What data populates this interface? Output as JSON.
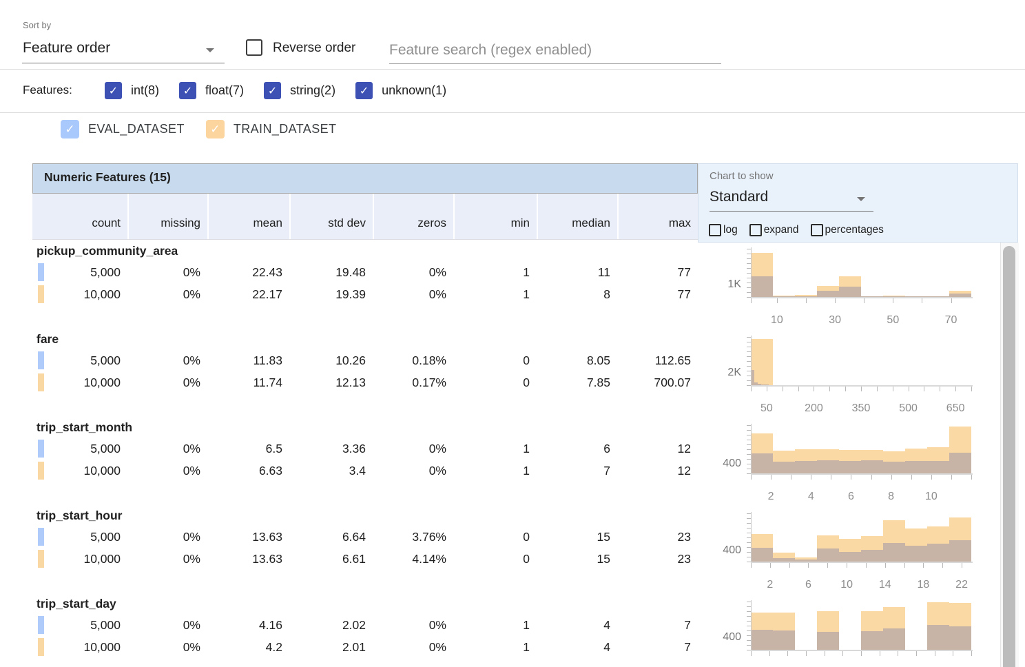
{
  "toolbar": {
    "sort_by_label": "Sort by",
    "sort_by_value": "Feature order",
    "reverse_order_label": "Reverse order",
    "search_placeholder": "Feature search (regex enabled)"
  },
  "features_filter": {
    "label": "Features:",
    "types": [
      {
        "label": "int(8)",
        "checked": true
      },
      {
        "label": "float(7)",
        "checked": true
      },
      {
        "label": "string(2)",
        "checked": true
      },
      {
        "label": "unknown(1)",
        "checked": true
      }
    ]
  },
  "datasets": [
    {
      "name": "EVAL_DATASET",
      "color": "#a9c8fb",
      "checked": true
    },
    {
      "name": "TRAIN_DATASET",
      "color": "#fbd49e",
      "checked": true
    }
  ],
  "chart_controls": {
    "label": "Chart to show",
    "value": "Standard",
    "options": [
      {
        "label": "log",
        "checked": false
      },
      {
        "label": "expand",
        "checked": false
      },
      {
        "label": "percentages",
        "checked": false
      }
    ]
  },
  "table": {
    "title": "Numeric Features (15)",
    "columns": [
      "count",
      "missing",
      "mean",
      "std dev",
      "zeros",
      "min",
      "median",
      "max"
    ],
    "features": [
      {
        "name": "pickup_community_area",
        "rows": [
          {
            "dataset": "EVAL_DATASET",
            "values": [
              "5,000",
              "0%",
              "22.43",
              "19.48",
              "0%",
              "1",
              "11",
              "77"
            ]
          },
          {
            "dataset": "TRAIN_DATASET",
            "values": [
              "10,000",
              "0%",
              "22.17",
              "19.39",
              "0%",
              "1",
              "8",
              "77"
            ]
          }
        ]
      },
      {
        "name": "fare",
        "rows": [
          {
            "dataset": "EVAL_DATASET",
            "values": [
              "5,000",
              "0%",
              "11.83",
              "10.26",
              "0.18%",
              "0",
              "8.05",
              "112.65"
            ]
          },
          {
            "dataset": "TRAIN_DATASET",
            "values": [
              "10,000",
              "0%",
              "11.74",
              "12.13",
              "0.17%",
              "0",
              "7.85",
              "700.07"
            ]
          }
        ]
      },
      {
        "name": "trip_start_month",
        "rows": [
          {
            "dataset": "EVAL_DATASET",
            "values": [
              "5,000",
              "0%",
              "6.5",
              "3.36",
              "0%",
              "1",
              "6",
              "12"
            ]
          },
          {
            "dataset": "TRAIN_DATASET",
            "values": [
              "10,000",
              "0%",
              "6.63",
              "3.4",
              "0%",
              "1",
              "7",
              "12"
            ]
          }
        ]
      },
      {
        "name": "trip_start_hour",
        "rows": [
          {
            "dataset": "EVAL_DATASET",
            "values": [
              "5,000",
              "0%",
              "13.63",
              "6.64",
              "3.76%",
              "0",
              "15",
              "23"
            ]
          },
          {
            "dataset": "TRAIN_DATASET",
            "values": [
              "10,000",
              "0%",
              "13.63",
              "6.61",
              "4.14%",
              "0",
              "15",
              "23"
            ]
          }
        ]
      },
      {
        "name": "trip_start_day",
        "rows": [
          {
            "dataset": "EVAL_DATASET",
            "values": [
              "5,000",
              "0%",
              "4.16",
              "2.02",
              "0%",
              "1",
              "4",
              "7"
            ]
          },
          {
            "dataset": "TRAIN_DATASET",
            "values": [
              "10,000",
              "0%",
              "4.2",
              "2.01",
              "0%",
              "1",
              "4",
              "7"
            ]
          }
        ]
      }
    ]
  },
  "chart_data": [
    {
      "type": "histogram-overlay",
      "feature": "pickup_community_area",
      "x_range": [
        1,
        77
      ],
      "ymax": 4000,
      "y_gridline": {
        "value": 1000,
        "label": "1K"
      },
      "x_ticks": [
        1,
        10,
        20,
        30,
        40,
        50,
        60,
        70
      ],
      "x_labels": [
        [
          10,
          "10"
        ],
        [
          30,
          "30"
        ],
        [
          50,
          "50"
        ],
        [
          70,
          "70"
        ]
      ],
      "series": [
        {
          "name": "TRAIN_DATASET",
          "x0": 1,
          "bin_width": 7.6,
          "counts": [
            3560,
            90,
            175,
            880,
            1665,
            50,
            120,
            50,
            20,
            490
          ]
        },
        {
          "name": "EVAL_DATASET",
          "x0": 1,
          "bin_width": 7.6,
          "counts": [
            1684,
            40,
            80,
            490,
            840,
            20,
            50,
            20,
            10,
            260
          ]
        }
      ]
    },
    {
      "type": "histogram-overlay",
      "feature": "fare",
      "x_range": [
        0,
        700
      ],
      "ymax": 8000,
      "y_gridline": {
        "value": 2000,
        "label": "2K"
      },
      "x_ticks": [
        0,
        50,
        100,
        150,
        200,
        250,
        300,
        350,
        400,
        450,
        500,
        550,
        600,
        650,
        700
      ],
      "x_labels": [
        [
          50,
          "50"
        ],
        [
          200,
          "200"
        ],
        [
          350,
          "350"
        ],
        [
          500,
          "500"
        ],
        [
          650,
          "650"
        ]
      ],
      "series": [
        {
          "name": "TRAIN_DATASET",
          "x0": 0,
          "bin_width": 70,
          "counts": [
            7460,
            0,
            0,
            0,
            0,
            0,
            0,
            0,
            0,
            0
          ]
        },
        {
          "name": "EVAL_DATASET",
          "x0": 0,
          "bin_width": 11.265,
          "counts": [
            2450,
            490,
            190,
            90,
            40,
            0,
            0,
            0,
            0,
            0
          ]
        }
      ]
    },
    {
      "type": "histogram-overlay",
      "feature": "trip_start_month",
      "x_range": [
        1,
        12
      ],
      "ymax": 2050,
      "y_gridline": {
        "value": 400,
        "label": "400"
      },
      "x_ticks": [
        1,
        2,
        3,
        4,
        5,
        6,
        7,
        8,
        9,
        10,
        11,
        12
      ],
      "x_labels": [
        [
          2,
          "2"
        ],
        [
          4,
          "4"
        ],
        [
          6,
          "6"
        ],
        [
          8,
          "8"
        ],
        [
          10,
          "10"
        ]
      ],
      "series": [
        {
          "name": "TRAIN_DATASET",
          "x0": 1,
          "bin_width": 1.1,
          "counts": [
            1660,
            950,
            1000,
            990,
            975,
            955,
            900,
            1030,
            1070,
            1935
          ]
        },
        {
          "name": "EVAL_DATASET",
          "x0": 1,
          "bin_width": 1.1,
          "counts": [
            838,
            490,
            500,
            540,
            520,
            530,
            480,
            510,
            500,
            867
          ]
        }
      ]
    },
    {
      "type": "histogram-overlay",
      "feature": "trip_start_hour",
      "x_range": [
        0,
        23
      ],
      "ymax": 1800,
      "y_gridline": {
        "value": 400,
        "label": "400"
      },
      "x_ticks": [
        0,
        2,
        4,
        6,
        8,
        10,
        12,
        14,
        16,
        18,
        20,
        22
      ],
      "x_labels": [
        [
          2,
          "2"
        ],
        [
          6,
          "6"
        ],
        [
          10,
          "10"
        ],
        [
          14,
          "14"
        ],
        [
          18,
          "18"
        ],
        [
          22,
          "22"
        ]
      ],
      "series": [
        {
          "name": "TRAIN_DATASET",
          "x0": 0,
          "bin_width": 2.3,
          "counts": [
            1000,
            320,
            140,
            950,
            825,
            935,
            1500,
            1200,
            1285,
            1600
          ]
        },
        {
          "name": "EVAL_DATASET",
          "x0": 0,
          "bin_width": 2.3,
          "counts": [
            500,
            120,
            85,
            475,
            350,
            435,
            685,
            585,
            642,
            767
          ]
        }
      ]
    },
    {
      "type": "histogram-overlay",
      "feature": "trip_start_day",
      "x_range": [
        1,
        7
      ],
      "ymax": 1600,
      "y_gridline": {
        "value": 400,
        "label": "400"
      },
      "x_ticks": [
        1,
        1.5,
        2,
        2.5,
        3,
        3.5,
        4,
        4.5,
        5,
        5.5,
        6,
        6.5,
        7
      ],
      "x_labels": [],
      "series": [
        {
          "name": "TRAIN_DATASET",
          "x0": 1,
          "bin_width": 0.6,
          "counts": [
            1200,
            1190,
            0,
            1245,
            0,
            1245,
            1370,
            0,
            1533,
            1520
          ]
        },
        {
          "name": "EVAL_DATASET",
          "x0": 1,
          "bin_width": 0.6,
          "counts": [
            650,
            630,
            0,
            578,
            0,
            590,
            690,
            0,
            793,
            755
          ]
        }
      ]
    }
  ],
  "colors": {
    "filter_checkbox": "#3d50b4",
    "eval_swatch": "#aecbfa",
    "train_swatch": "#f9d8a4",
    "bar_train": "#fbd9a4",
    "bar_overlap": "#c7b4a6",
    "table_header_bg": "#c8daee",
    "column_header_bg": "#e9eef8",
    "chart_panel_bg": "#e9f1fb"
  }
}
